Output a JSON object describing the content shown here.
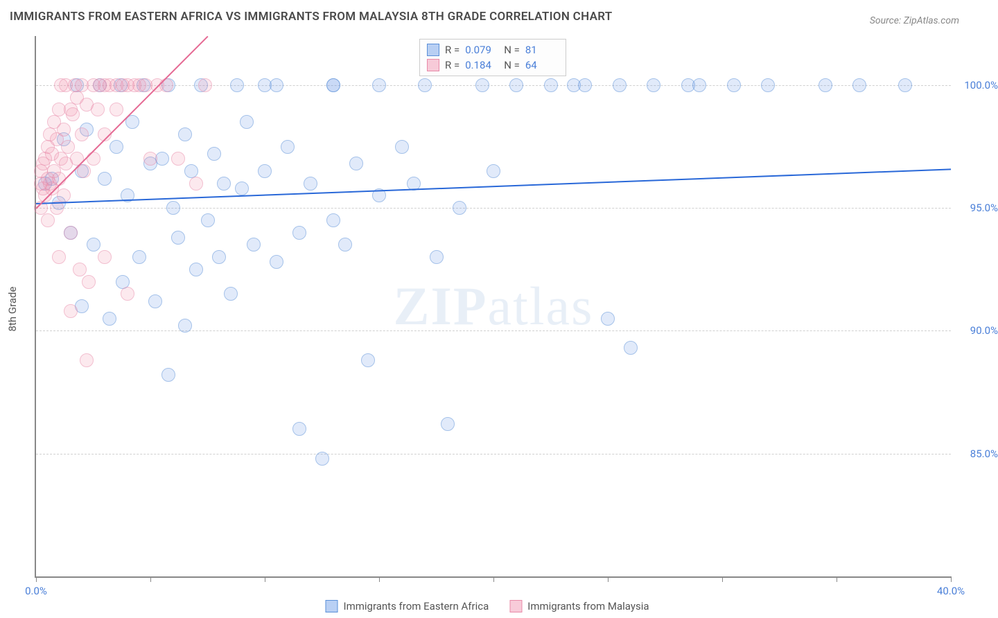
{
  "title": "IMMIGRANTS FROM EASTERN AFRICA VS IMMIGRANTS FROM MALAYSIA 8TH GRADE CORRELATION CHART",
  "source": "Source: ZipAtlas.com",
  "ylabel": "8th Grade",
  "watermark_a": "ZIP",
  "watermark_b": "atlas",
  "chart": {
    "type": "scatter",
    "xlim": [
      0,
      40
    ],
    "ylim": [
      80,
      102
    ],
    "x_ticks": [
      0,
      5,
      10,
      15,
      20,
      25,
      30,
      35,
      40
    ],
    "x_tick_labels_visible": {
      "0": "0.0%",
      "40": "40.0%"
    },
    "y_ticks": [
      85,
      90,
      95,
      100
    ],
    "y_tick_labels": {
      "85": "85.0%",
      "90": "90.0%",
      "95": "95.0%",
      "100": "100.0%"
    },
    "background": "#ffffff",
    "grid_color": "#d0d0d0",
    "axis_color": "#888888"
  },
  "series": [
    {
      "name": "Immigrants from Eastern Africa",
      "color_fill": "rgba(100,150,230,0.35)",
      "color_stroke": "#5a8fd8",
      "class": "blue",
      "R": "0.079",
      "N": "81",
      "trend": {
        "x1": 0,
        "y1": 95.2,
        "x2": 40,
        "y2": 96.6
      },
      "points": [
        [
          0.4,
          96.0
        ],
        [
          0.7,
          96.2
        ],
        [
          1.0,
          95.2
        ],
        [
          1.2,
          97.8
        ],
        [
          1.5,
          94.0
        ],
        [
          1.8,
          100.0
        ],
        [
          2.0,
          91.0
        ],
        [
          2.0,
          96.5
        ],
        [
          2.2,
          98.2
        ],
        [
          2.5,
          93.5
        ],
        [
          2.8,
          100.0
        ],
        [
          3.0,
          96.2
        ],
        [
          3.2,
          90.5
        ],
        [
          3.5,
          97.5
        ],
        [
          3.7,
          100.0
        ],
        [
          3.8,
          92.0
        ],
        [
          4.0,
          95.5
        ],
        [
          4.2,
          98.5
        ],
        [
          4.5,
          93.0
        ],
        [
          4.7,
          100.0
        ],
        [
          5.0,
          96.8
        ],
        [
          5.2,
          91.2
        ],
        [
          5.5,
          97.0
        ],
        [
          5.8,
          100.0
        ],
        [
          5.8,
          88.2
        ],
        [
          6.0,
          95.0
        ],
        [
          6.2,
          93.8
        ],
        [
          6.5,
          98.0
        ],
        [
          6.5,
          90.2
        ],
        [
          6.8,
          96.5
        ],
        [
          7.0,
          92.5
        ],
        [
          7.2,
          100.0
        ],
        [
          7.5,
          94.5
        ],
        [
          7.8,
          97.2
        ],
        [
          8.0,
          93.0
        ],
        [
          8.2,
          96.0
        ],
        [
          8.5,
          91.5
        ],
        [
          8.8,
          100.0
        ],
        [
          9.0,
          95.8
        ],
        [
          9.2,
          98.5
        ],
        [
          9.5,
          93.5
        ],
        [
          10.0,
          96.5
        ],
        [
          10.0,
          100.0
        ],
        [
          10.5,
          92.8
        ],
        [
          10.5,
          100.0
        ],
        [
          11.0,
          97.5
        ],
        [
          11.5,
          94.0
        ],
        [
          11.5,
          86.0
        ],
        [
          12.0,
          96.0
        ],
        [
          12.5,
          84.8
        ],
        [
          13.0,
          100.0
        ],
        [
          13.0,
          94.5
        ],
        [
          13.0,
          100.0
        ],
        [
          13.5,
          93.5
        ],
        [
          14.0,
          96.8
        ],
        [
          14.5,
          88.8
        ],
        [
          15.0,
          95.5
        ],
        [
          15.0,
          100.0
        ],
        [
          16.0,
          97.5
        ],
        [
          16.5,
          96.0
        ],
        [
          17.0,
          100.0
        ],
        [
          17.5,
          93.0
        ],
        [
          18.0,
          86.2
        ],
        [
          18.5,
          95.0
        ],
        [
          19.5,
          100.0
        ],
        [
          20.0,
          96.5
        ],
        [
          21.0,
          100.0
        ],
        [
          22.5,
          100.0
        ],
        [
          23.5,
          100.0
        ],
        [
          24.0,
          100.0
        ],
        [
          25.0,
          90.5
        ],
        [
          25.5,
          100.0
        ],
        [
          26.0,
          89.3
        ],
        [
          27.0,
          100.0
        ],
        [
          28.5,
          100.0
        ],
        [
          29.0,
          100.0
        ],
        [
          30.5,
          100.0
        ],
        [
          32.0,
          100.0
        ],
        [
          34.5,
          100.0
        ],
        [
          36.0,
          100.0
        ],
        [
          38.0,
          100.0
        ]
      ]
    },
    {
      "name": "Immigrants from Malaysia",
      "color_fill": "rgba(240,140,170,0.35)",
      "color_stroke": "#e88aa8",
      "class": "pink",
      "R": "0.184",
      "N": "64",
      "trend": {
        "x1": 0,
        "y1": 95.0,
        "x2": 7.5,
        "y2": 102.0
      },
      "points": [
        [
          0.2,
          95.0
        ],
        [
          0.2,
          96.0
        ],
        [
          0.2,
          96.5
        ],
        [
          0.3,
          95.8
        ],
        [
          0.3,
          96.8
        ],
        [
          0.4,
          97.0
        ],
        [
          0.4,
          95.5
        ],
        [
          0.5,
          96.2
        ],
        [
          0.5,
          97.5
        ],
        [
          0.5,
          94.5
        ],
        [
          0.6,
          96.0
        ],
        [
          0.6,
          98.0
        ],
        [
          0.7,
          95.8
        ],
        [
          0.7,
          97.2
        ],
        [
          0.8,
          96.5
        ],
        [
          0.8,
          98.5
        ],
        [
          0.9,
          95.0
        ],
        [
          0.9,
          97.8
        ],
        [
          1.0,
          96.2
        ],
        [
          1.0,
          99.0
        ],
        [
          1.0,
          93.0
        ],
        [
          1.1,
          97.0
        ],
        [
          1.1,
          100.0
        ],
        [
          1.2,
          95.5
        ],
        [
          1.2,
          98.2
        ],
        [
          1.3,
          96.8
        ],
        [
          1.3,
          100.0
        ],
        [
          1.4,
          97.5
        ],
        [
          1.5,
          99.0
        ],
        [
          1.5,
          94.0
        ],
        [
          1.5,
          90.8
        ],
        [
          1.6,
          98.8
        ],
        [
          1.7,
          100.0
        ],
        [
          1.8,
          97.0
        ],
        [
          1.8,
          99.5
        ],
        [
          1.9,
          92.5
        ],
        [
          2.0,
          98.0
        ],
        [
          2.0,
          100.0
        ],
        [
          2.1,
          96.5
        ],
        [
          2.2,
          99.2
        ],
        [
          2.2,
          88.8
        ],
        [
          2.3,
          92.0
        ],
        [
          2.5,
          100.0
        ],
        [
          2.5,
          97.0
        ],
        [
          2.7,
          99.0
        ],
        [
          2.8,
          100.0
        ],
        [
          3.0,
          98.0
        ],
        [
          3.0,
          100.0
        ],
        [
          3.0,
          93.0
        ],
        [
          3.2,
          100.0
        ],
        [
          3.5,
          99.0
        ],
        [
          3.5,
          100.0
        ],
        [
          3.8,
          100.0
        ],
        [
          4.0,
          100.0
        ],
        [
          4.0,
          91.5
        ],
        [
          4.3,
          100.0
        ],
        [
          4.5,
          100.0
        ],
        [
          4.8,
          100.0
        ],
        [
          5.0,
          97.0
        ],
        [
          5.3,
          100.0
        ],
        [
          5.7,
          100.0
        ],
        [
          6.2,
          97.0
        ],
        [
          7.0,
          96.0
        ],
        [
          7.4,
          100.0
        ]
      ]
    }
  ],
  "stats_legend": {
    "r_label": "R =",
    "n_label": "N ="
  },
  "bottom_legend": {
    "series1": "Immigrants from Eastern Africa",
    "series2": "Immigrants from Malaysia"
  }
}
